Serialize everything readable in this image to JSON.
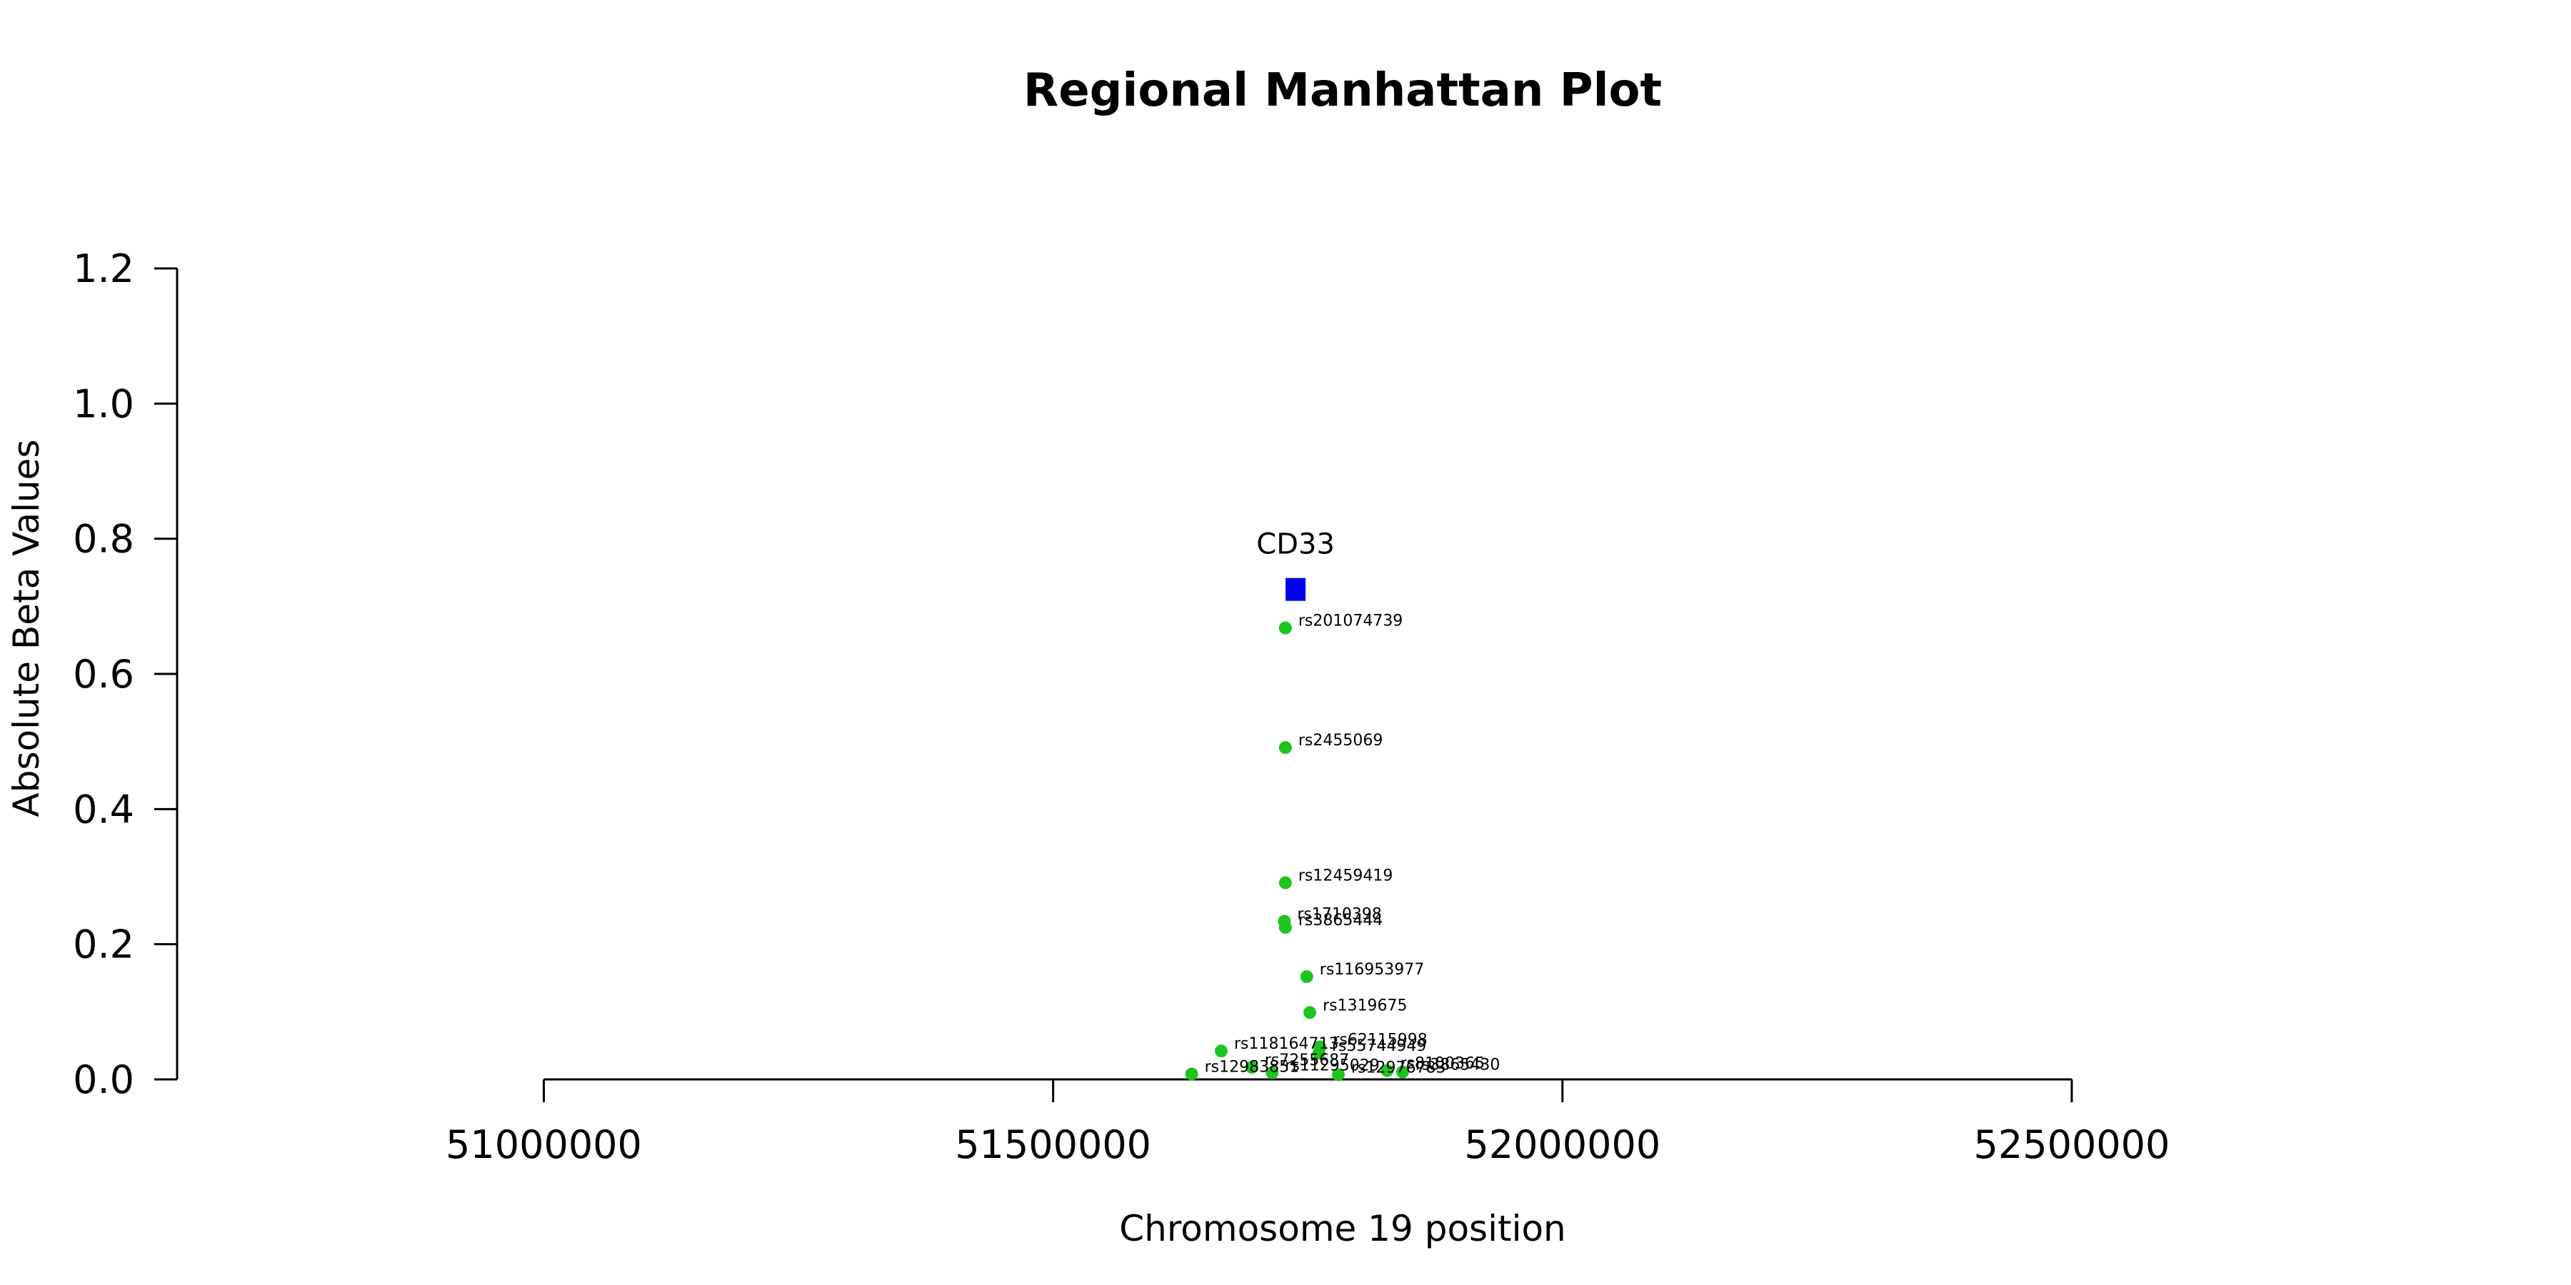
{
  "chart_data": {
    "type": "scatter",
    "title": "Regional Manhattan Plot",
    "xlabel": "Chromosome 19 position",
    "ylabel": "Absolute Beta Values",
    "xlim": [
      50640000,
      52920000
    ],
    "ylim": [
      0,
      1.2
    ],
    "x_ticks": [
      51000000,
      51500000,
      52000000,
      52500000
    ],
    "x_tick_labels": [
      "51000000",
      "51500000",
      "52000000",
      "52500000"
    ],
    "y_ticks": [
      0.0,
      0.2,
      0.4,
      0.6,
      0.8,
      1.0,
      1.2
    ],
    "y_tick_labels": [
      "0.0",
      "0.2",
      "0.4",
      "0.6",
      "0.8",
      "1.0",
      "1.2"
    ],
    "grid": false,
    "colors": {
      "snp": "#1fc41f",
      "gene": "#0000ee"
    },
    "series": [
      {
        "name": "CD33",
        "marker": "square",
        "color": "#0000ee",
        "points": [
          {
            "x": 51738000,
            "y": 0.725,
            "label": "CD33"
          }
        ]
      },
      {
        "marker": "circle",
        "color": "#1fc41f",
        "points": [
          {
            "x": 51728000,
            "y": 0.668,
            "label": "rs201074739"
          },
          {
            "x": 51728000,
            "y": 0.491,
            "label": "rs2455069"
          },
          {
            "x": 51728000,
            "y": 0.291,
            "label": "rs12459419"
          },
          {
            "x": 51727000,
            "y": 0.234,
            "label": "rs1710398"
          },
          {
            "x": 51728000,
            "y": 0.225,
            "label": "rs3865444"
          },
          {
            "x": 51749000,
            "y": 0.152,
            "label": "rs116953977"
          },
          {
            "x": 51752000,
            "y": 0.099,
            "label": "rs1319675"
          },
          {
            "x": 51665000,
            "y": 0.042,
            "label": "rs118164713"
          },
          {
            "x": 51762000,
            "y": 0.048,
            "label": "rs62115998"
          },
          {
            "x": 51761000,
            "y": 0.039,
            "label": "rs55744949"
          },
          {
            "x": 51695000,
            "y": 0.018,
            "label": "rs7255687"
          },
          {
            "x": 51715000,
            "y": 0.01,
            "label": "rs11295029"
          },
          {
            "x": 51636000,
            "y": 0.008,
            "label": "rs12983851"
          },
          {
            "x": 51780000,
            "y": 0.007,
            "label": "rs12976783"
          },
          {
            "x": 51828000,
            "y": 0.013,
            "label": "rs8100365"
          },
          {
            "x": 51843000,
            "y": 0.011,
            "label": "rs3865430"
          }
        ]
      }
    ]
  }
}
